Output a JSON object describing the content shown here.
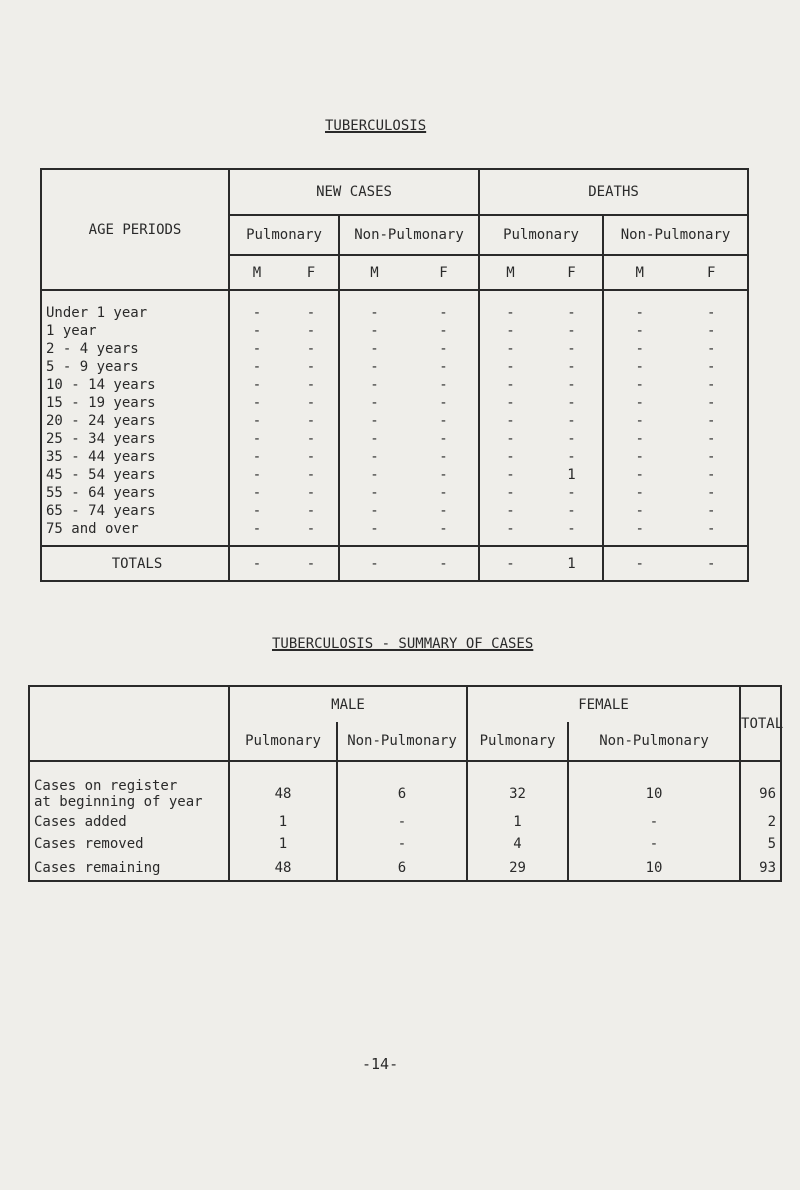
{
  "title1": "TUBERCULOSIS",
  "table1": {
    "age_header": "AGE PERIODS",
    "groups": [
      "NEW CASES",
      "DEATHS"
    ],
    "subgroups": [
      "Pulmonary",
      "Non-Pulmonary",
      "Pulmonary",
      "Non-Pulmonary"
    ],
    "sex": [
      "M",
      "F"
    ],
    "rows": [
      {
        "label": "Under 1 year",
        "values": [
          "-",
          "-",
          "-",
          "-",
          "-",
          "-",
          "-",
          "-"
        ]
      },
      {
        "label": "1 year",
        "values": [
          "-",
          "-",
          "-",
          "-",
          "-",
          "-",
          "-",
          "-"
        ]
      },
      {
        "label": "2 - 4 years",
        "values": [
          "-",
          "-",
          "-",
          "-",
          "-",
          "-",
          "-",
          "-"
        ]
      },
      {
        "label": "5 - 9 years",
        "values": [
          "-",
          "-",
          "-",
          "-",
          "-",
          "-",
          "-",
          "-"
        ]
      },
      {
        "label": "10 - 14 years",
        "values": [
          "-",
          "-",
          "-",
          "-",
          "-",
          "-",
          "-",
          "-"
        ]
      },
      {
        "label": "15 - 19 years",
        "values": [
          "-",
          "-",
          "-",
          "-",
          "-",
          "-",
          "-",
          "-"
        ]
      },
      {
        "label": "20 - 24 years",
        "values": [
          "-",
          "-",
          "-",
          "-",
          "-",
          "-",
          "-",
          "-"
        ]
      },
      {
        "label": "25 - 34 years",
        "values": [
          "-",
          "-",
          "-",
          "-",
          "-",
          "-",
          "-",
          "-"
        ]
      },
      {
        "label": "35 - 44 years",
        "values": [
          "-",
          "-",
          "-",
          "-",
          "-",
          "-",
          "-",
          "-"
        ]
      },
      {
        "label": "45 - 54 years",
        "values": [
          "-",
          "-",
          "-",
          "-",
          "-",
          "1",
          "-",
          "-"
        ]
      },
      {
        "label": "55 - 64 years",
        "values": [
          "-",
          "-",
          "-",
          "-",
          "-",
          "-",
          "-",
          "-"
        ]
      },
      {
        "label": "65 - 74 years",
        "values": [
          "-",
          "-",
          "-",
          "-",
          "-",
          "-",
          "-",
          "-"
        ]
      },
      {
        "label": "75 and over",
        "values": [
          "-",
          "-",
          "-",
          "-",
          "-",
          "-",
          "-",
          "-"
        ]
      }
    ],
    "totals": {
      "label": "TOTALS",
      "values": [
        "-",
        "-",
        "-",
        "-",
        "-",
        "1",
        "-",
        "-"
      ]
    }
  },
  "title2": "TUBERCULOSIS - SUMMARY OF CASES",
  "table2": {
    "groups": [
      "MALE",
      "FEMALE"
    ],
    "total_header": "TOTAL",
    "subgroups": [
      "Pulmonary",
      "Non-Pulmonary",
      "Pulmonary",
      "Non-Pulmonary"
    ],
    "rows": [
      {
        "label": "Cases on register\nat beginning of year",
        "values": [
          "48",
          "6",
          "32",
          "10",
          "96"
        ]
      },
      {
        "label": "Cases added",
        "values": [
          "1",
          "-",
          "1",
          "-",
          "2"
        ]
      },
      {
        "label": "Cases removed",
        "values": [
          "1",
          "-",
          "4",
          "-",
          "5"
        ]
      },
      {
        "label": "Cases remaining",
        "values": [
          "48",
          "6",
          "29",
          "10",
          "93"
        ]
      }
    ]
  },
  "page_number": "-14-"
}
